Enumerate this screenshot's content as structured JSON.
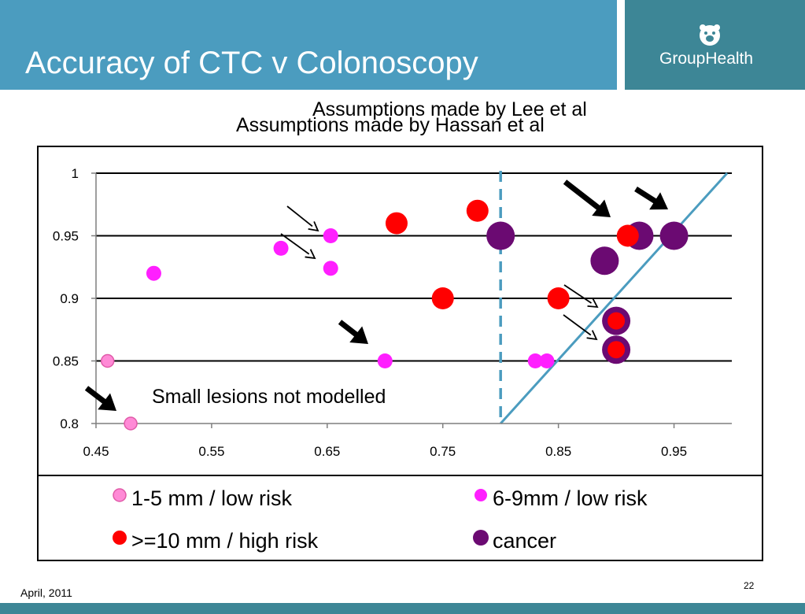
{
  "slide": {
    "title": "Accuracy of CTC v Colonoscopy",
    "logo_text": "GroupHealth",
    "date": "April, 2011",
    "page_number": "22"
  },
  "colors": {
    "header_blue": "#4b9cbf",
    "header_teal": "#3d8696",
    "pink_light": "#ff8ad6",
    "magenta": "#ff1fff",
    "red": "#ff0000",
    "purple": "#6b0a72",
    "line_blue": "#4b9cbf"
  },
  "annotations": {
    "lee": "Assumptions made by Lee et al",
    "hassan": "Assumptions made by Hassan et al",
    "small_lesions": "Small lesions not modelled"
  },
  "chart_data": {
    "type": "scatter",
    "xlim": [
      0.45,
      1.0
    ],
    "ylim": [
      0.8,
      1.0
    ],
    "xticks": [
      "0.45",
      "0.55",
      "0.65",
      "0.75",
      "0.85",
      "0.95"
    ],
    "yticks": [
      "0.8",
      "0.85",
      "0.9",
      "0.95",
      "1"
    ],
    "grid": "horizontal",
    "legend_position": "bottom",
    "series": [
      {
        "name": "1-5 mm / low risk",
        "color": "#ff8ad6",
        "points": [
          [
            0.46,
            0.85
          ],
          [
            0.48,
            0.8
          ]
        ]
      },
      {
        "name": "6-9mm / low risk",
        "color": "#ff1fff",
        "points": [
          [
            0.5,
            0.92
          ],
          [
            0.61,
            0.94
          ],
          [
            0.653,
            0.95
          ],
          [
            0.653,
            0.924
          ],
          [
            0.7,
            0.85
          ],
          [
            0.83,
            0.85
          ],
          [
            0.84,
            0.85
          ]
        ]
      },
      {
        "name": ">=10 mm / high risk",
        "color": "#ff0000",
        "points": [
          [
            0.71,
            0.96
          ],
          [
            0.78,
            0.97
          ],
          [
            0.75,
            0.9
          ],
          [
            0.85,
            0.9
          ],
          [
            0.91,
            0.95
          ],
          [
            0.9,
            0.882
          ],
          [
            0.9,
            0.859
          ]
        ]
      },
      {
        "name": "cancer",
        "color": "#6b0a72",
        "points": [
          [
            0.8,
            0.95
          ],
          [
            0.92,
            0.95
          ],
          [
            0.95,
            0.95
          ],
          [
            0.89,
            0.93
          ],
          [
            0.9,
            0.882
          ],
          [
            0.9,
            0.859
          ]
        ]
      }
    ],
    "reference_lines": [
      {
        "kind": "vertical-dashed",
        "x": 0.8
      },
      {
        "kind": "diagonal",
        "from": [
          0.8,
          0.8
        ],
        "to": [
          1.0,
          1.0
        ]
      }
    ]
  }
}
